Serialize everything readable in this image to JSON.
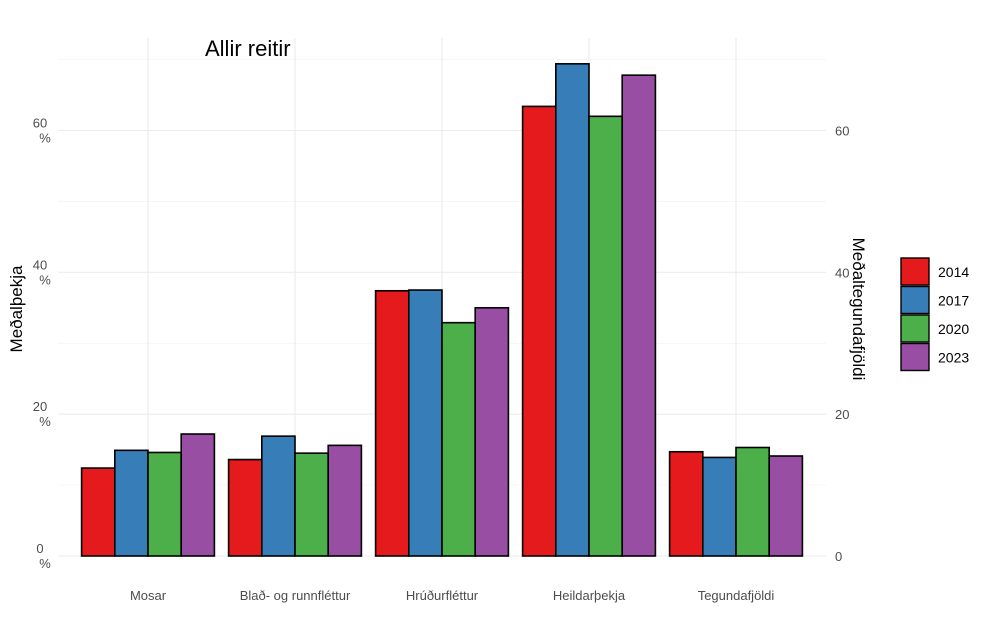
{
  "chart_data": {
    "type": "bar",
    "title": "Allir reitir",
    "ylabel": "Meðalþekja",
    "y2label": "Meðaltegundafjöldi",
    "categories": [
      "Mosar",
      "Blað- og runnfléttur",
      "Hrúðurfléttur",
      "Heildarþekja",
      "Tegundafjöldi"
    ],
    "ylim": [
      0,
      70
    ],
    "left_ticks": [
      "0\n%",
      "20\n%",
      "40\n%",
      "60\n%"
    ],
    "left_tick_values": [
      0,
      20,
      40,
      60
    ],
    "right_ticks": [
      "0",
      "20",
      "40",
      "60"
    ],
    "right_tick_values": [
      0,
      20,
      40,
      60
    ],
    "grid": true,
    "legend_position": "right",
    "series": [
      {
        "name": "2014",
        "color": "#E41A1C",
        "values": [
          12.4,
          13.6,
          37.4,
          63.4,
          14.7
        ]
      },
      {
        "name": "2017",
        "color": "#377EB8",
        "values": [
          14.9,
          16.9,
          37.5,
          69.4,
          13.9
        ]
      },
      {
        "name": "2020",
        "color": "#4DAF4A",
        "values": [
          14.6,
          14.5,
          32.9,
          62.0,
          15.3
        ]
      },
      {
        "name": "2023",
        "color": "#984EA3",
        "values": [
          17.2,
          15.6,
          35.0,
          67.8,
          14.1
        ]
      }
    ]
  }
}
